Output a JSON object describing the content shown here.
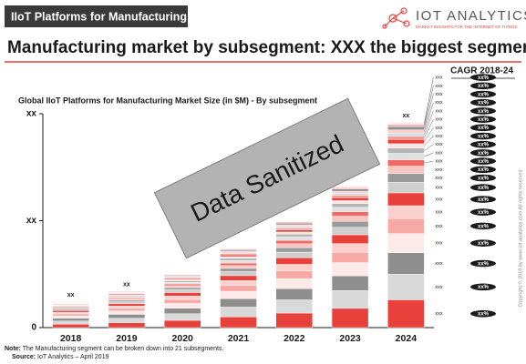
{
  "header": {
    "tag": "IIoT Platforms for Manufacturing",
    "brand": "IOT ANALYTICS",
    "tagline": "MARKET INSIGHTS FOR THE INTERNET OF THINGS",
    "headline": "Manufacturing market by subsegment: XXX the biggest segment",
    "cagr_heading": "CAGR 2018-24"
  },
  "footer": {
    "note_label": "Note:",
    "note": "The Manufacturing segment can be broken down into 21 subsegments.",
    "source_label": "Source:",
    "source": "IoT Analytics – April 2019",
    "copyright": "Copyright © 2019 by www.iot-analytics.com All rights reserved"
  },
  "chart_data": {
    "type": "stacked_bar",
    "title": "Global IIoT Platforms for Manufacturing Market Size (in $M) - By subsegment",
    "annotation": "Data Sanitized",
    "categories": [
      "2018",
      "2019",
      "2020",
      "2021",
      "2022",
      "2023",
      "2024"
    ],
    "ylim": [
      0,
      100
    ],
    "yticks": [
      0,
      {
        "value": 50,
        "label": "xx"
      },
      {
        "value": 100,
        "label": "xx"
      }
    ],
    "total_labels": [
      "xx",
      "xx",
      null,
      null,
      null,
      null,
      "xx"
    ],
    "cagr_labels": [
      "xx%",
      "xx%",
      "xx%",
      "xx%",
      "xx%",
      "xx%",
      "xx%",
      "xx%",
      "xx%",
      "xx%",
      "xx%",
      "xx%",
      "xx%",
      "xx%",
      "xx%",
      "xx%",
      "xx%",
      "xx%",
      "xx%",
      "xx%",
      "xx%"
    ],
    "series": [
      {
        "name": "xxx",
        "color": "#e8413c",
        "values": [
          1.6,
          2.3,
          3.4,
          5.0,
          6.8,
          9.0,
          13
        ]
      },
      {
        "name": "xxx",
        "color": "#d9d9d9",
        "values": [
          1.5,
          2.1,
          3.1,
          4.6,
          6.2,
          8.3,
          12
        ]
      },
      {
        "name": "xxx",
        "color": "#8e8e8e",
        "values": [
          1.3,
          1.8,
          2.6,
          3.9,
          5.2,
          6.9,
          10
        ]
      },
      {
        "name": "xxx",
        "color": "#fde9e7",
        "values": [
          1.1,
          1.6,
          2.3,
          3.5,
          4.7,
          6.2,
          9
        ]
      },
      {
        "name": "xxx",
        "color": "#f7aaa5",
        "values": [
          0.9,
          1.2,
          1.8,
          2.7,
          3.6,
          4.8,
          7
        ]
      },
      {
        "name": "xxx",
        "color": "#fbd0cd",
        "values": [
          0.8,
          1.1,
          1.6,
          2.3,
          3.1,
          4.1,
          6
        ]
      },
      {
        "name": "xxx",
        "color": "#e8413c",
        "values": [
          0.8,
          1.1,
          1.6,
          2.3,
          3.1,
          4.1,
          6
        ]
      },
      {
        "name": "xxx",
        "color": "#cfcfcf",
        "values": [
          0.6,
          0.9,
          1.3,
          1.9,
          2.6,
          3.5,
          5
        ]
      },
      {
        "name": "xxx",
        "color": "#9a9a9a",
        "values": [
          0.5,
          0.7,
          1.0,
          1.5,
          2.1,
          2.8,
          4
        ]
      },
      {
        "name": "xxx",
        "color": "#f9c5c1",
        "values": [
          0.4,
          0.6,
          0.9,
          1.3,
          1.8,
          2.4,
          3.5
        ]
      },
      {
        "name": "xxx",
        "color": "#ef6a64",
        "values": [
          0.4,
          0.5,
          0.8,
          1.2,
          1.6,
          2.1,
          3
        ]
      },
      {
        "name": "xxx",
        "color": "#e0e0e0",
        "values": [
          0.4,
          0.5,
          0.8,
          1.2,
          1.6,
          2.1,
          3
        ]
      },
      {
        "name": "xxx",
        "color": "#b5b5b5",
        "values": [
          0.3,
          0.4,
          0.7,
          1.0,
          1.3,
          1.7,
          2.5
        ]
      },
      {
        "name": "xxx",
        "color": "#fde4e2",
        "values": [
          0.3,
          0.4,
          0.5,
          0.8,
          1.0,
          1.4,
          2
        ]
      },
      {
        "name": "xxx",
        "color": "#e8413c",
        "values": [
          0.3,
          0.4,
          0.5,
          0.8,
          1.0,
          1.4,
          2
        ]
      },
      {
        "name": "xxx",
        "color": "#f49c97",
        "values": [
          0.2,
          0.3,
          0.4,
          0.6,
          0.8,
          1.0,
          1.5
        ]
      },
      {
        "name": "xxx",
        "color": "#d9d9d9",
        "values": [
          0.2,
          0.3,
          0.4,
          0.6,
          0.8,
          1.0,
          1.5
        ]
      },
      {
        "name": "xxx",
        "color": "#fbd0cd",
        "values": [
          0.2,
          0.3,
          0.4,
          0.6,
          0.8,
          1.0,
          1.5
        ]
      },
      {
        "name": "xxx",
        "color": "#8e8e8e",
        "values": [
          0.2,
          0.3,
          0.4,
          0.6,
          0.8,
          1.0,
          1.5
        ]
      },
      {
        "name": "xxx",
        "color": "#f7b3ae",
        "values": [
          0.1,
          0.2,
          0.3,
          0.4,
          0.5,
          0.7,
          1
        ]
      },
      {
        "name": "xxx",
        "color": "#fde9e7",
        "values": [
          0.1,
          0.2,
          0.3,
          0.4,
          0.5,
          0.7,
          1
        ]
      }
    ]
  }
}
